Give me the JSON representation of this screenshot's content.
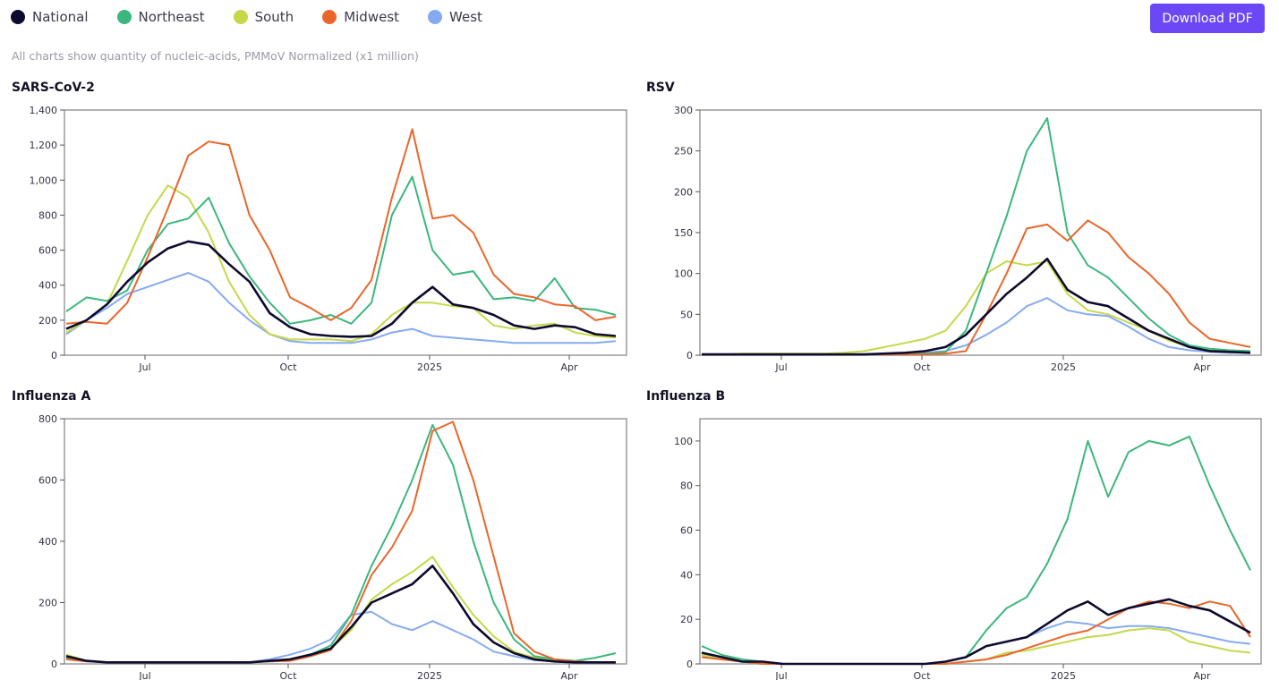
{
  "legend": [
    {
      "label": "National",
      "color": "#0d0b2e"
    },
    {
      "label": "Northeast",
      "color": "#3cb77d"
    },
    {
      "label": "South",
      "color": "#c6d84a"
    },
    {
      "label": "Midwest",
      "color": "#e8662b"
    },
    {
      "label": "West",
      "color": "#86aaf2"
    }
  ],
  "download_label": "Download PDF",
  "subtitle": "All charts show quantity of nucleic-acids, PMMoV Normalized (x1 million)",
  "chart_data": [
    {
      "type": "line",
      "title": "SARS-CoV-2",
      "x_ticks": [
        "Jul",
        "Oct",
        "2025",
        "Apr"
      ],
      "y_ticks": [
        "0",
        "200",
        "400",
        "600",
        "800",
        "1,000",
        "1,200",
        "1,400"
      ],
      "ylim": [
        0,
        1400
      ],
      "series": [
        {
          "name": "National",
          "color": "#0d0b2e",
          "values": [
            150,
            200,
            290,
            420,
            530,
            610,
            650,
            630,
            520,
            420,
            240,
            160,
            120,
            110,
            105,
            110,
            180,
            300,
            390,
            290,
            270,
            230,
            170,
            150,
            170,
            160,
            120,
            110
          ]
        },
        {
          "name": "Northeast",
          "color": "#3cb77d",
          "values": [
            250,
            330,
            310,
            370,
            600,
            750,
            780,
            900,
            640,
            450,
            300,
            180,
            200,
            230,
            180,
            300,
            800,
            1020,
            600,
            460,
            480,
            320,
            330,
            310,
            440,
            270,
            260,
            230
          ]
        },
        {
          "name": "South",
          "color": "#c6d84a",
          "values": [
            130,
            200,
            290,
            540,
            800,
            970,
            900,
            700,
            420,
            230,
            120,
            90,
            90,
            90,
            80,
            120,
            230,
            300,
            300,
            280,
            270,
            170,
            150,
            170,
            180,
            130,
            110,
            100
          ]
        },
        {
          "name": "Midwest",
          "color": "#e8662b",
          "values": [
            180,
            190,
            180,
            300,
            560,
            840,
            1140,
            1220,
            1200,
            800,
            600,
            330,
            270,
            200,
            270,
            430,
            900,
            1290,
            780,
            800,
            700,
            460,
            350,
            330,
            290,
            280,
            200,
            220
          ]
        },
        {
          "name": "West",
          "color": "#86aaf2",
          "values": [
            120,
            200,
            270,
            350,
            390,
            430,
            470,
            420,
            300,
            200,
            120,
            80,
            70,
            70,
            70,
            90,
            130,
            150,
            110,
            100,
            90,
            80,
            70,
            70,
            70,
            70,
            70,
            80
          ]
        }
      ]
    },
    {
      "type": "line",
      "title": "RSV",
      "x_ticks": [
        "Jul",
        "Oct",
        "2025",
        "Apr"
      ],
      "y_ticks": [
        "0",
        "50",
        "100",
        "150",
        "200",
        "250",
        "300"
      ],
      "ylim": [
        0,
        300
      ],
      "series": [
        {
          "name": "National",
          "color": "#0d0b2e",
          "values": [
            1,
            1,
            1,
            1,
            1,
            1,
            1,
            1,
            1,
            2,
            3,
            5,
            10,
            25,
            50,
            75,
            95,
            118,
            80,
            65,
            60,
            45,
            30,
            20,
            10,
            5,
            4,
            3
          ]
        },
        {
          "name": "Northeast",
          "color": "#3cb77d",
          "values": [
            1,
            1,
            1,
            1,
            1,
            1,
            1,
            1,
            1,
            1,
            1,
            2,
            4,
            30,
            100,
            170,
            250,
            290,
            150,
            110,
            95,
            70,
            45,
            25,
            12,
            8,
            6,
            5
          ]
        },
        {
          "name": "South",
          "color": "#c6d84a",
          "values": [
            1,
            1,
            2,
            2,
            2,
            2,
            2,
            3,
            5,
            10,
            15,
            20,
            30,
            60,
            100,
            115,
            110,
            115,
            75,
            55,
            50,
            40,
            30,
            18,
            10,
            6,
            5,
            4
          ]
        },
        {
          "name": "Midwest",
          "color": "#e8662b",
          "values": [
            1,
            1,
            1,
            1,
            1,
            1,
            1,
            1,
            1,
            1,
            1,
            1,
            2,
            5,
            50,
            100,
            155,
            160,
            140,
            165,
            150,
            120,
            100,
            75,
            40,
            20,
            15,
            10
          ]
        },
        {
          "name": "West",
          "color": "#86aaf2",
          "values": [
            1,
            1,
            1,
            1,
            1,
            1,
            1,
            1,
            1,
            1,
            2,
            3,
            5,
            12,
            25,
            40,
            60,
            70,
            55,
            50,
            48,
            35,
            20,
            10,
            6,
            4,
            3,
            3
          ]
        }
      ]
    },
    {
      "type": "line",
      "title": "Influenza A",
      "x_ticks": [
        "Jul",
        "Oct",
        "2025",
        "Apr"
      ],
      "y_ticks": [
        "0",
        "200",
        "400",
        "600",
        "800"
      ],
      "ylim": [
        0,
        800
      ],
      "series": [
        {
          "name": "National",
          "color": "#0d0b2e",
          "values": [
            25,
            10,
            5,
            5,
            5,
            5,
            5,
            5,
            5,
            5,
            10,
            15,
            30,
            50,
            120,
            200,
            230,
            260,
            320,
            230,
            130,
            70,
            35,
            15,
            8,
            5,
            5,
            5
          ]
        },
        {
          "name": "Northeast",
          "color": "#3cb77d",
          "values": [
            20,
            10,
            5,
            5,
            5,
            5,
            5,
            5,
            5,
            5,
            10,
            15,
            30,
            60,
            160,
            320,
            450,
            600,
            780,
            650,
            400,
            200,
            80,
            25,
            15,
            10,
            20,
            35
          ]
        },
        {
          "name": "South",
          "color": "#c6d84a",
          "values": [
            30,
            10,
            5,
            5,
            5,
            5,
            5,
            5,
            5,
            5,
            8,
            15,
            25,
            50,
            110,
            210,
            260,
            300,
            350,
            250,
            160,
            90,
            40,
            20,
            10,
            5,
            5,
            5
          ]
        },
        {
          "name": "Midwest",
          "color": "#e8662b",
          "values": [
            15,
            8,
            5,
            5,
            5,
            5,
            5,
            5,
            5,
            5,
            8,
            10,
            25,
            45,
            140,
            290,
            380,
            500,
            760,
            790,
            600,
            350,
            100,
            40,
            15,
            8,
            5,
            5
          ]
        },
        {
          "name": "West",
          "color": "#86aaf2",
          "values": [
            20,
            10,
            5,
            5,
            5,
            5,
            5,
            5,
            5,
            5,
            15,
            30,
            50,
            80,
            160,
            170,
            130,
            110,
            140,
            110,
            80,
            40,
            25,
            12,
            8,
            5,
            5,
            5
          ]
        }
      ]
    },
    {
      "type": "line",
      "title": "Influenza B",
      "x_ticks": [
        "Jul",
        "Oct",
        "2025",
        "Apr"
      ],
      "y_ticks": [
        "0",
        "20",
        "40",
        "60",
        "80",
        "100"
      ],
      "ylim": [
        0,
        110
      ],
      "series": [
        {
          "name": "National",
          "color": "#0d0b2e",
          "values": [
            5,
            3,
            1,
            1,
            0,
            0,
            0,
            0,
            0,
            0,
            0,
            0,
            1,
            3,
            8,
            10,
            12,
            18,
            24,
            28,
            22,
            25,
            27,
            29,
            26,
            24,
            19,
            14
          ]
        },
        {
          "name": "Northeast",
          "color": "#3cb77d",
          "values": [
            8,
            4,
            2,
            1,
            0,
            0,
            0,
            0,
            0,
            0,
            0,
            0,
            1,
            3,
            15,
            25,
            30,
            45,
            65,
            100,
            75,
            95,
            100,
            98,
            102,
            80,
            60,
            42
          ]
        },
        {
          "name": "South",
          "color": "#c6d84a",
          "values": [
            4,
            2,
            1,
            0,
            0,
            0,
            0,
            0,
            0,
            0,
            0,
            0,
            0,
            1,
            2,
            5,
            6,
            8,
            10,
            12,
            13,
            15,
            16,
            15,
            10,
            8,
            6,
            5
          ]
        },
        {
          "name": "Midwest",
          "color": "#e8662b",
          "values": [
            3,
            2,
            1,
            0,
            0,
            0,
            0,
            0,
            0,
            0,
            0,
            0,
            0,
            1,
            2,
            4,
            7,
            10,
            13,
            15,
            20,
            25,
            28,
            27,
            25,
            28,
            26,
            12
          ]
        },
        {
          "name": "West",
          "color": "#86aaf2",
          "values": [
            4,
            2,
            1,
            0,
            0,
            0,
            0,
            0,
            0,
            0,
            0,
            0,
            1,
            3,
            8,
            10,
            12,
            16,
            19,
            18,
            16,
            17,
            17,
            16,
            14,
            12,
            10,
            9
          ]
        }
      ]
    }
  ]
}
